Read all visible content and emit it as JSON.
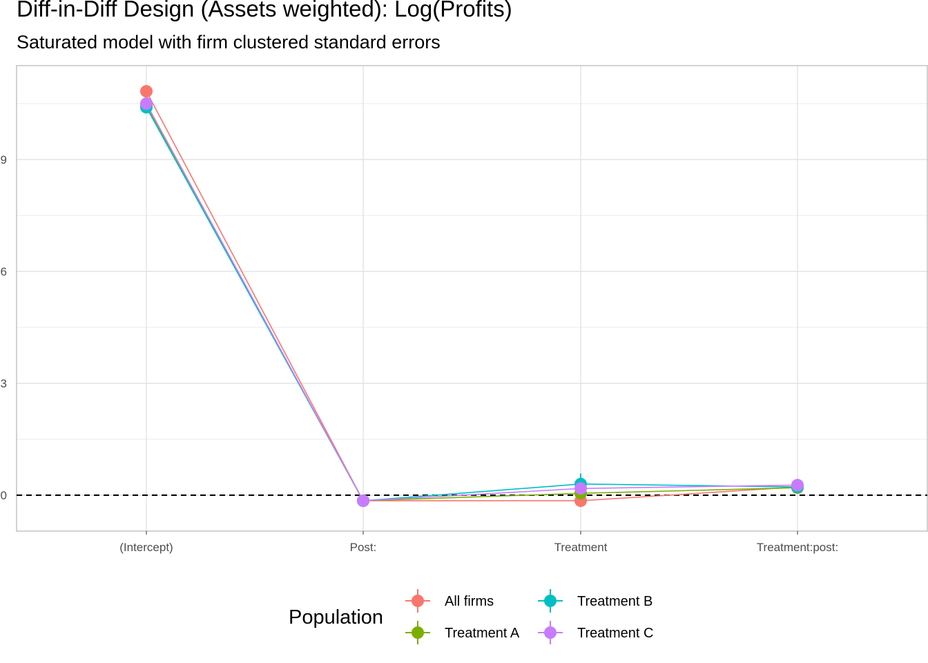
{
  "chart_data": {
    "type": "line",
    "title": "Diff-in-Diff Design (Assets weighted): Log(Profits)",
    "subtitle": "Saturated model with firm clustered standard errors",
    "xlabel": "",
    "ylabel": "",
    "categories": [
      "(Intercept)",
      "Post:",
      "Treatment",
      "Treatment:post:"
    ],
    "y_ticks": [
      0,
      3,
      6,
      9
    ],
    "ylim": [
      -0.95,
      11.5
    ],
    "grid": true,
    "reference_line": {
      "y": 0,
      "style": "dashed"
    },
    "legend": {
      "title": "Population",
      "position": "bottom"
    },
    "series": [
      {
        "name": "All firms",
        "color": "#F8766D",
        "values": [
          10.83,
          -0.15,
          -0.15,
          0.22
        ],
        "ci": [
          [
            10.78,
            10.88
          ],
          [
            -0.18,
            -0.12
          ],
          [
            -0.32,
            0.02
          ],
          [
            0.17,
            0.27
          ]
        ]
      },
      {
        "name": "Treatment A",
        "color": "#7CAE00",
        "values": [
          10.45,
          -0.15,
          0.05,
          0.2
        ],
        "ci": [
          [
            10.4,
            10.5
          ],
          [
            -0.18,
            -0.12
          ],
          [
            -0.05,
            0.15
          ],
          [
            0.15,
            0.25
          ]
        ]
      },
      {
        "name": "Treatment B",
        "color": "#00BFC4",
        "values": [
          10.4,
          -0.15,
          0.3,
          0.22
        ],
        "ci": [
          [
            10.35,
            10.45
          ],
          [
            -0.18,
            -0.12
          ],
          [
            0.1,
            0.58
          ],
          [
            0.17,
            0.27
          ]
        ]
      },
      {
        "name": "Treatment C",
        "color": "#C77CFF",
        "values": [
          10.5,
          -0.15,
          0.18,
          0.27
        ],
        "ci": [
          [
            10.45,
            10.55
          ],
          [
            -0.18,
            -0.12
          ],
          [
            0.12,
            0.24
          ],
          [
            0.22,
            0.32
          ]
        ]
      }
    ]
  }
}
